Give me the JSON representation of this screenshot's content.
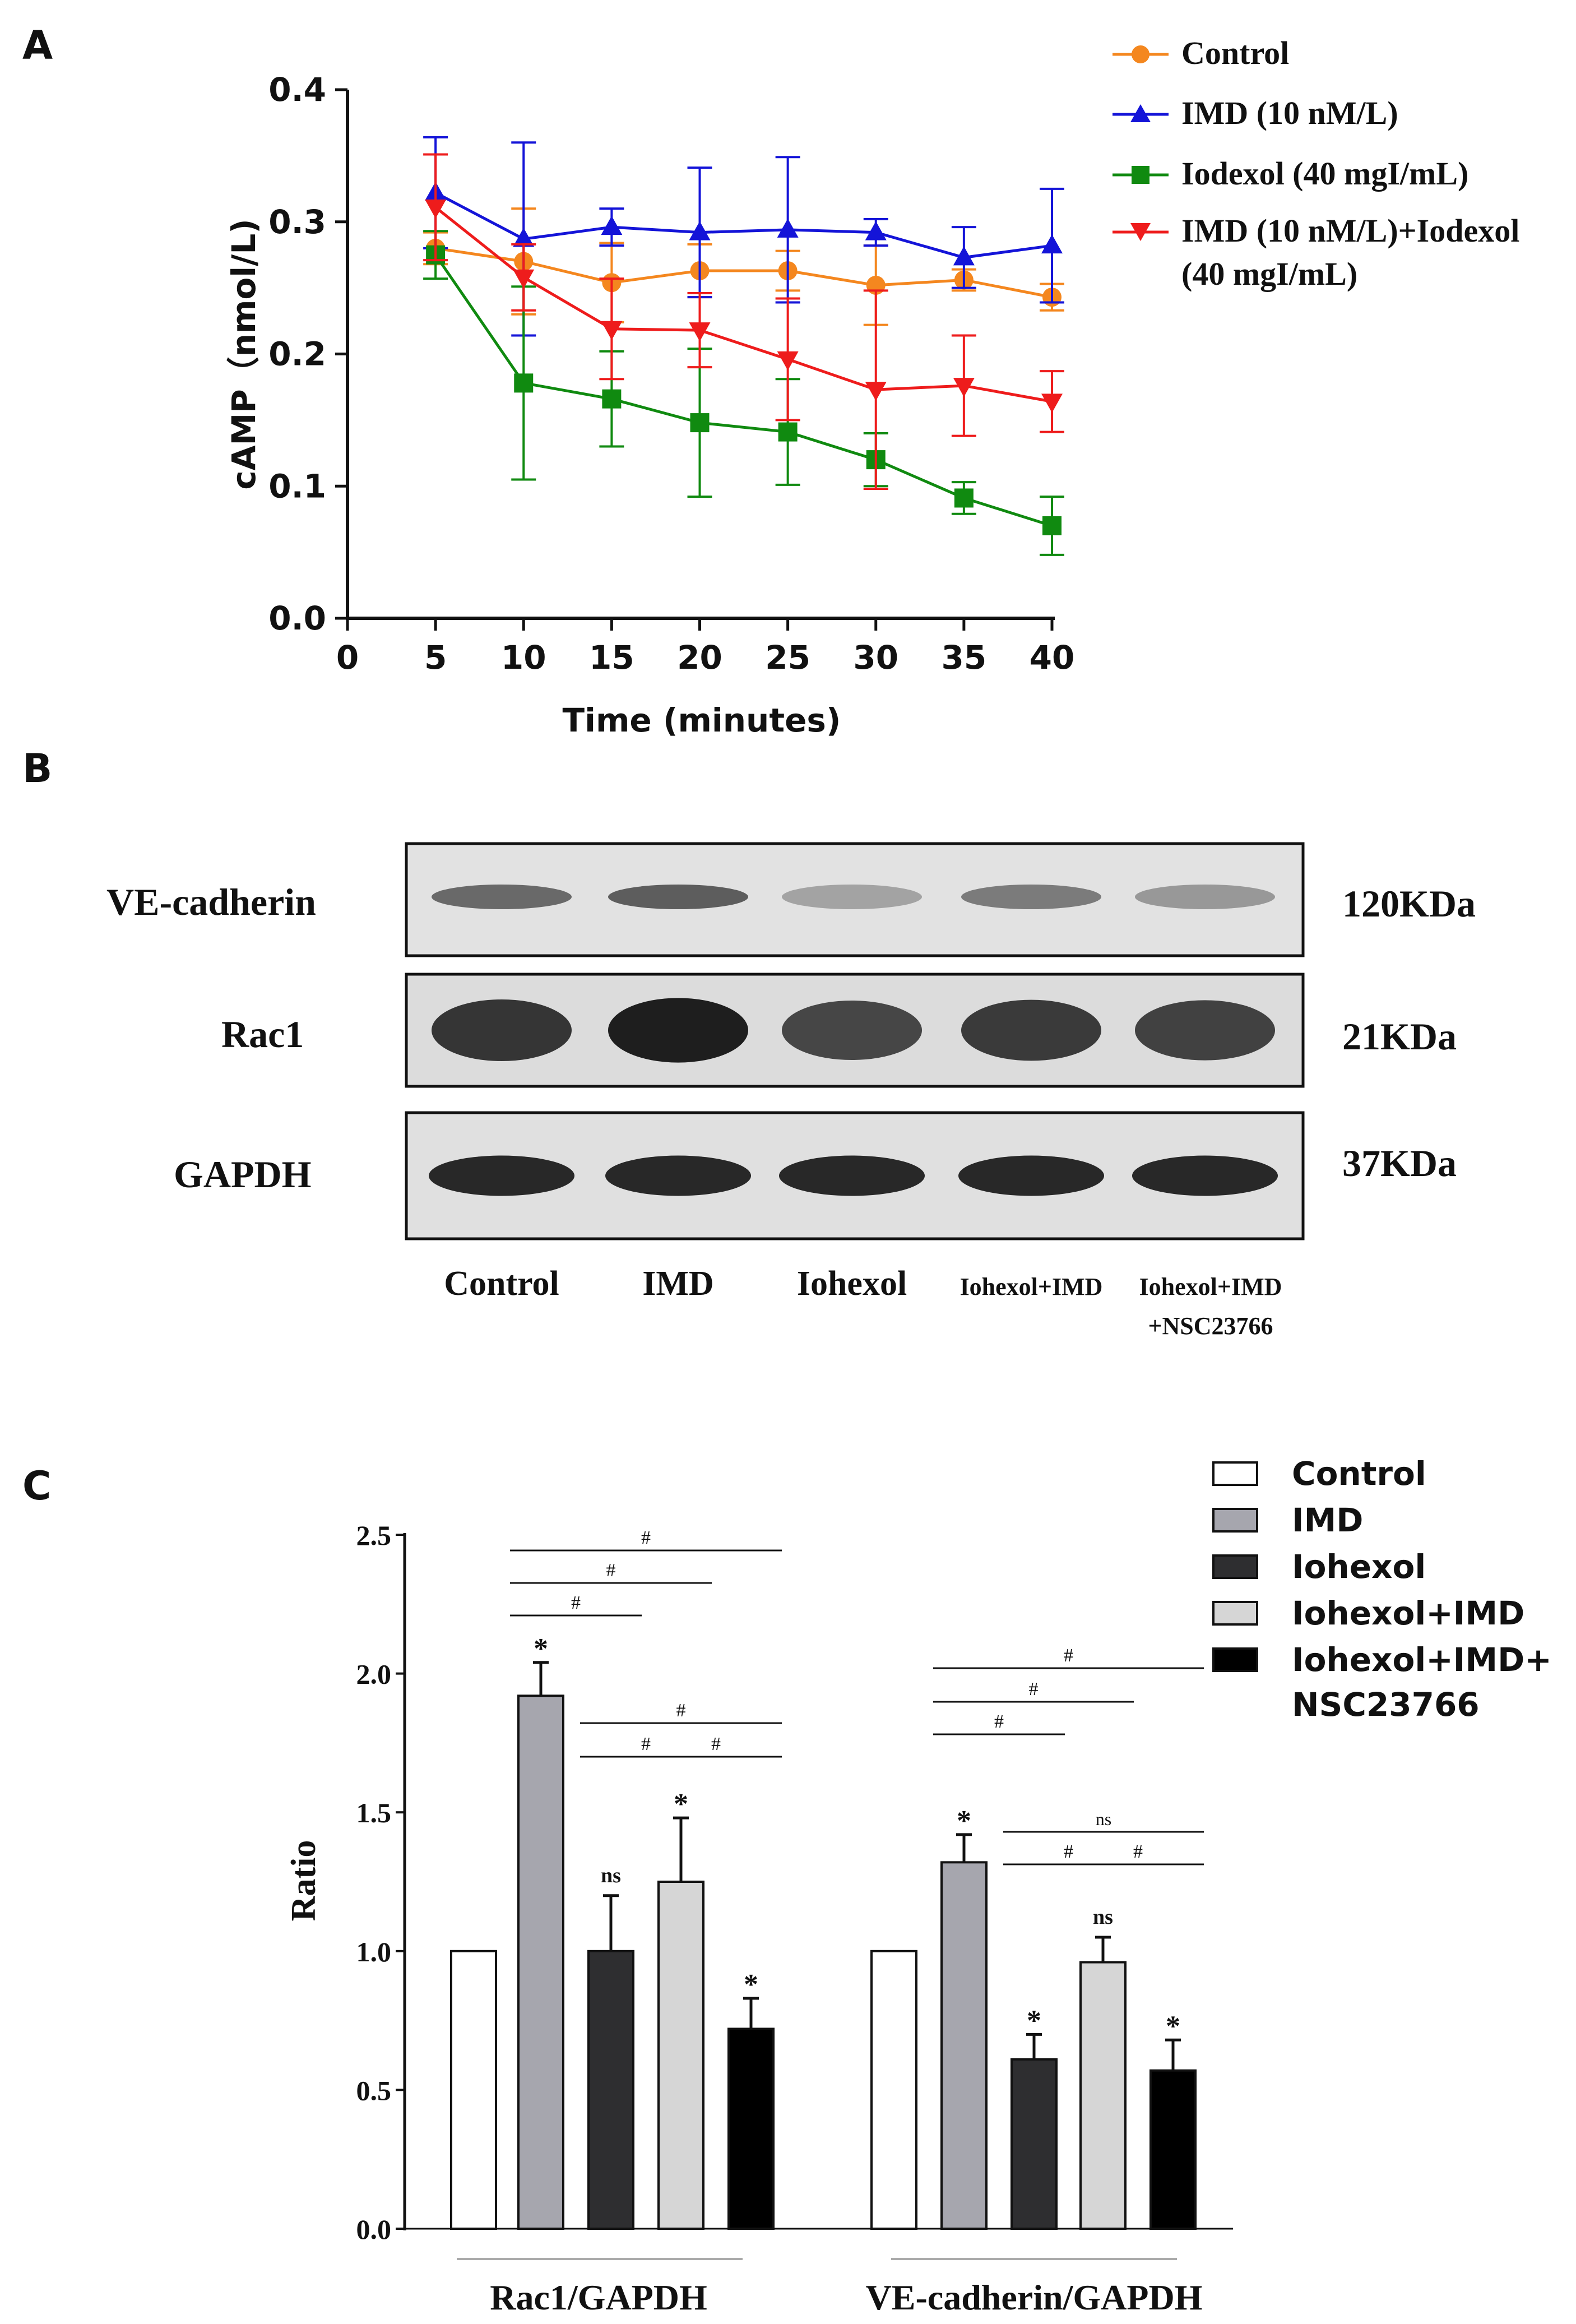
{
  "panels": {
    "a": {
      "letter": "A"
    },
    "b": {
      "letter": "B"
    },
    "c": {
      "letter": "C"
    }
  },
  "colors": {
    "control": "#f4871f",
    "imd": "#1414d8",
    "iodexol": "#108a10",
    "combo": "#ee1c1c",
    "bar_control": "#ffffff",
    "bar_imd": "#a6a6ae",
    "bar_iohexol": "#2e2e30",
    "bar_iohexol_imd": "#d6d6d6",
    "bar_nsc": "#000000"
  },
  "chart_data": [
    {
      "type": "line",
      "panel": "A",
      "xlabel": "Time (minutes)",
      "ylabel": "cAMP（nmol/L)",
      "xlim": [
        0,
        40
      ],
      "ylim": [
        0,
        0.4
      ],
      "x_ticks": [
        "0",
        "5",
        "10",
        "15",
        "20",
        "25",
        "30",
        "35",
        "40"
      ],
      "y_ticks": [
        "0.0",
        "0.1",
        "0.2",
        "0.3",
        "0.4"
      ],
      "x": [
        5,
        10,
        15,
        20,
        25,
        30,
        35,
        40
      ],
      "legend_position": "top-right",
      "series": [
        {
          "name": "Control",
          "marker": "circle",
          "color": "#f4871f",
          "values": [
            0.28,
            0.27,
            0.254,
            0.263,
            0.263,
            0.252,
            0.256,
            0.243
          ],
          "error": [
            0.012,
            0.04,
            0.03,
            0.02,
            0.015,
            0.03,
            0.008,
            0.01
          ]
        },
        {
          "name": "IMD (10 nM/L)",
          "marker": "triangle-up",
          "color": "#1414d8",
          "values": [
            0.322,
            0.287,
            0.296,
            0.292,
            0.294,
            0.292,
            0.273,
            0.282
          ],
          "error": [
            0.042,
            0.073,
            0.014,
            0.049,
            0.055,
            0.01,
            0.023,
            0.043
          ]
        },
        {
          "name": "Iodexol (40 mgI/mL)",
          "marker": "square",
          "color": "#108a10",
          "values": [
            0.275,
            0.178,
            0.166,
            0.148,
            0.141,
            0.12,
            0.091,
            0.07
          ],
          "error": [
            0.018,
            0.073,
            0.036,
            0.056,
            0.04,
            0.02,
            0.012,
            0.022
          ]
        },
        {
          "name": "IMD (10 nM/L)+Iodexol",
          "name_line2": "(40 mgI/mL)",
          "marker": "triangle-down",
          "color": "#ee1c1c",
          "values": [
            0.311,
            0.258,
            0.219,
            0.218,
            0.196,
            0.173,
            0.176,
            0.164
          ],
          "error": [
            0.04,
            0.025,
            0.038,
            0.028,
            0.046,
            0.075,
            0.038,
            0.023
          ]
        }
      ]
    },
    {
      "type": "bar",
      "panel": "C",
      "ylabel": "Ratio",
      "ylim": [
        0,
        2.5
      ],
      "y_ticks": [
        "0.0",
        "0.5",
        "1.0",
        "1.5",
        "2.0",
        "2.5"
      ],
      "categories": [
        "Rac1/GAPDH",
        "VE-cadherin/GAPDH"
      ],
      "legend_position": "top-right",
      "series": [
        {
          "name": "Control",
          "legend": "Control",
          "values": [
            1.0,
            1.0
          ],
          "error": [
            0,
            0
          ],
          "sig": [
            "",
            ""
          ]
        },
        {
          "name": "IMD",
          "legend": "IMD",
          "values": [
            1.92,
            1.32
          ],
          "error": [
            0.12,
            0.1
          ],
          "sig": [
            "*",
            "*"
          ]
        },
        {
          "name": "Iohexol",
          "legend": "Iohexol",
          "values": [
            1.0,
            0.61
          ],
          "error": [
            0.2,
            0.09
          ],
          "sig": [
            "ns",
            "*"
          ]
        },
        {
          "name": "Iohexol+IMD",
          "legend": "Iohexol+IMD",
          "values": [
            1.25,
            0.96
          ],
          "error": [
            0.23,
            0.09
          ],
          "sig": [
            "*",
            "ns"
          ]
        },
        {
          "name": "Iohexol+IMD+NSC23766",
          "legend": "Iohexol+IMD+",
          "legend_line2": "NSC23766",
          "values": [
            0.72,
            0.57
          ],
          "error": [
            0.11,
            0.11
          ],
          "sig": [
            "*",
            "*"
          ]
        }
      ],
      "brackets": [
        {
          "group": 0,
          "from": 1,
          "to": 2,
          "level": 0,
          "label": "#"
        },
        {
          "group": 0,
          "from": 1,
          "to": 3,
          "level": 1,
          "label": "#"
        },
        {
          "group": 0,
          "from": 1,
          "to": 4,
          "level": 2,
          "label": "#"
        },
        {
          "group": 0,
          "from": 2,
          "to": 3,
          "level": 3,
          "label": "#"
        },
        {
          "group": 0,
          "from": 3,
          "to": 4,
          "level": 3,
          "label": "#"
        },
        {
          "group": 0,
          "from": 2,
          "to": 4,
          "level": 4,
          "label": "#"
        },
        {
          "group": 1,
          "from": 1,
          "to": 2,
          "level": 0,
          "label": "#"
        },
        {
          "group": 1,
          "from": 1,
          "to": 3,
          "level": 1,
          "label": "#"
        },
        {
          "group": 1,
          "from": 1,
          "to": 4,
          "level": 2,
          "label": "#"
        },
        {
          "group": 1,
          "from": 2,
          "to": 3,
          "level": 5,
          "label": "#"
        },
        {
          "group": 1,
          "from": 3,
          "to": 4,
          "level": 5,
          "label": "#"
        },
        {
          "group": 1,
          "from": 2,
          "to": 4,
          "level": 6,
          "label": "ns"
        }
      ]
    }
  ],
  "western_blot": {
    "rows": [
      {
        "protein": "VE-cadherin",
        "size": "120KDa",
        "intensity": [
          0.55,
          0.62,
          0.22,
          0.45,
          0.28
        ]
      },
      {
        "protein": "Rac1",
        "size": "21KDa",
        "intensity": [
          0.85,
          0.98,
          0.75,
          0.82,
          0.78
        ]
      },
      {
        "protein": "GAPDH",
        "size": "37KDa",
        "intensity": [
          0.92,
          0.92,
          0.92,
          0.92,
          0.92
        ]
      }
    ],
    "lanes": [
      "Control",
      "IMD",
      "Iohexol",
      "Iohexol+IMD",
      "Iohexol+IMD"
    ],
    "lane_line2": [
      "",
      "",
      "",
      "",
      "+NSC23766"
    ]
  }
}
